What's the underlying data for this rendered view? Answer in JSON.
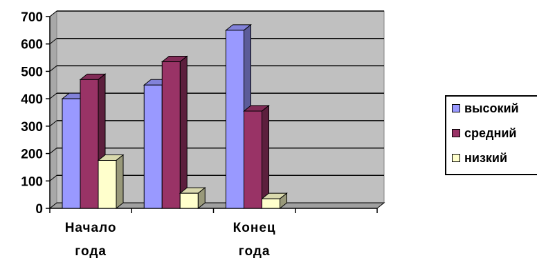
{
  "chart_data": {
    "type": "bar",
    "categories": [
      "Начало года",
      "",
      "Конец года",
      ""
    ],
    "category_labels": [
      [
        "Начало",
        "года"
      ],
      [],
      [
        "Конец",
        "года"
      ],
      []
    ],
    "series": [
      {
        "name": "высокий",
        "color": "#9999ff",
        "values": [
          400,
          450,
          650,
          null
        ]
      },
      {
        "name": "средний",
        "color": "#993366",
        "values": [
          470,
          535,
          355,
          null
        ]
      },
      {
        "name": "низкий",
        "color": "#ffffcc",
        "values": [
          175,
          55,
          35,
          null
        ]
      }
    ],
    "ylim": [
      0,
      700
    ],
    "yticks": [
      "0",
      "100",
      "200",
      "300",
      "400",
      "500",
      "600",
      "700"
    ],
    "grid": true,
    "legend_position": "right",
    "plot_background": "#c0c0c0"
  }
}
